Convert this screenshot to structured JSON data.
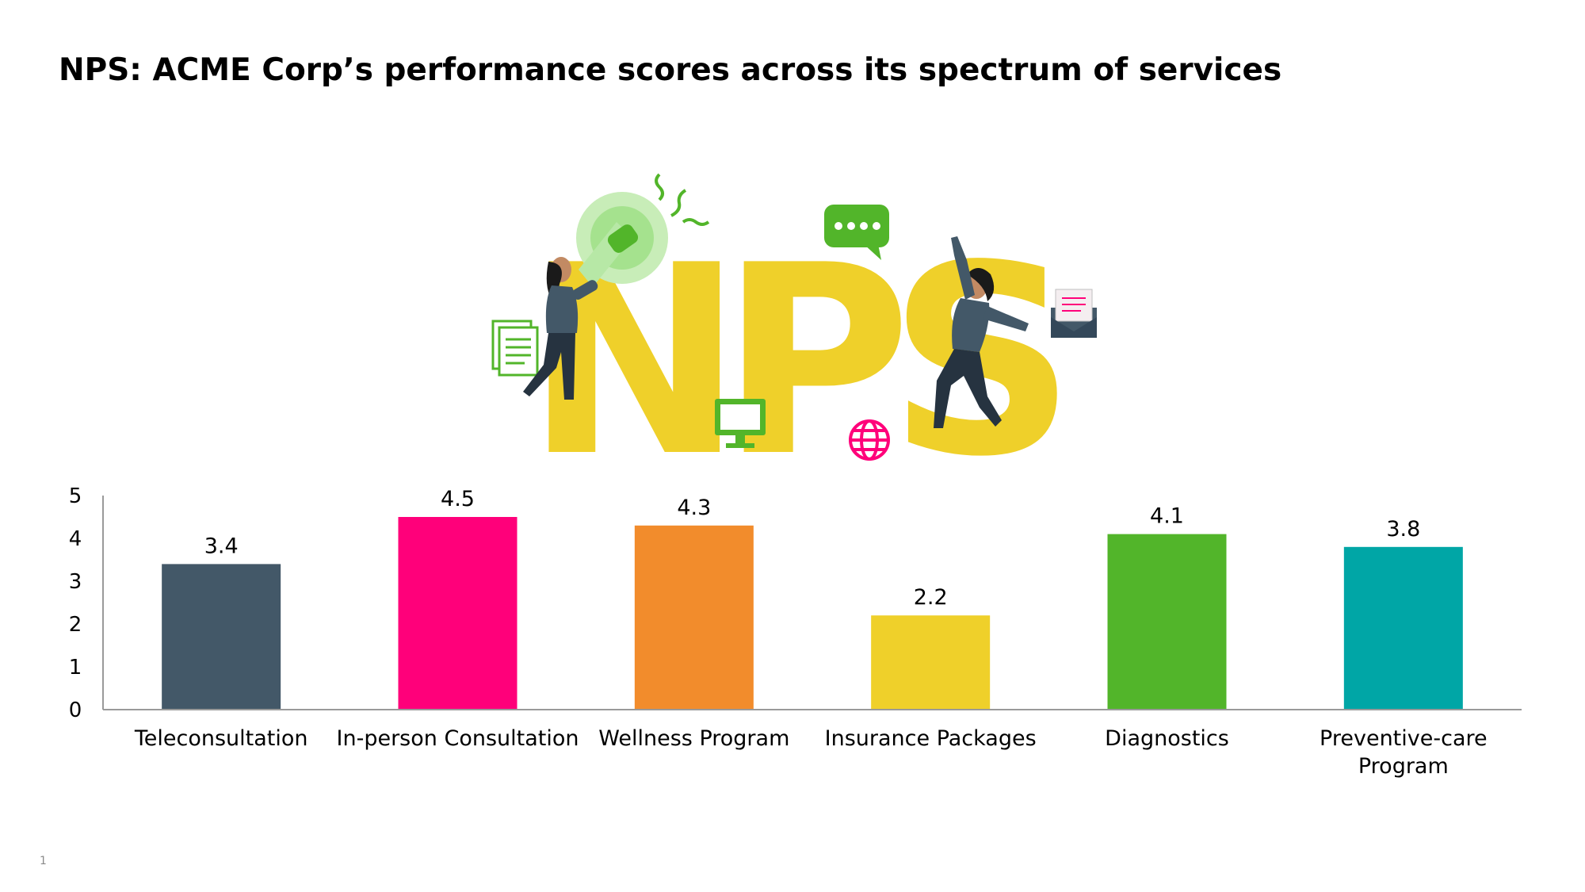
{
  "slide": {
    "title": "NPS: ACME Corp’s performance scores across its spectrum of services",
    "page_number": "1"
  },
  "illustration": {
    "word": "NPS",
    "icons": [
      "megaphone-icon",
      "chat-bubble-icon",
      "document-icon",
      "monitor-icon",
      "globe-icon",
      "envelope-icon"
    ]
  },
  "chart_data": {
    "type": "bar",
    "title": "",
    "xlabel": "",
    "ylabel": "",
    "categories": [
      "Teleconsultation",
      "In-person Consultation",
      "Wellness Program",
      "Insurance Packages",
      "Diagnostics",
      "Preventive-care Program"
    ],
    "values": [
      3.4,
      4.5,
      4.3,
      2.2,
      4.1,
      3.8
    ],
    "value_labels": [
      "3.4",
      "4.5",
      "4.3",
      "2.2",
      "4.1",
      "3.8"
    ],
    "colors": [
      "#435868",
      "#FF007A",
      "#F28C2C",
      "#EFD02A",
      "#52B52A",
      "#00A6A6"
    ],
    "ylim": [
      0,
      5
    ],
    "yticks": [
      "0",
      "1",
      "2",
      "3",
      "4",
      "5"
    ],
    "grid": false,
    "legend": "none"
  }
}
